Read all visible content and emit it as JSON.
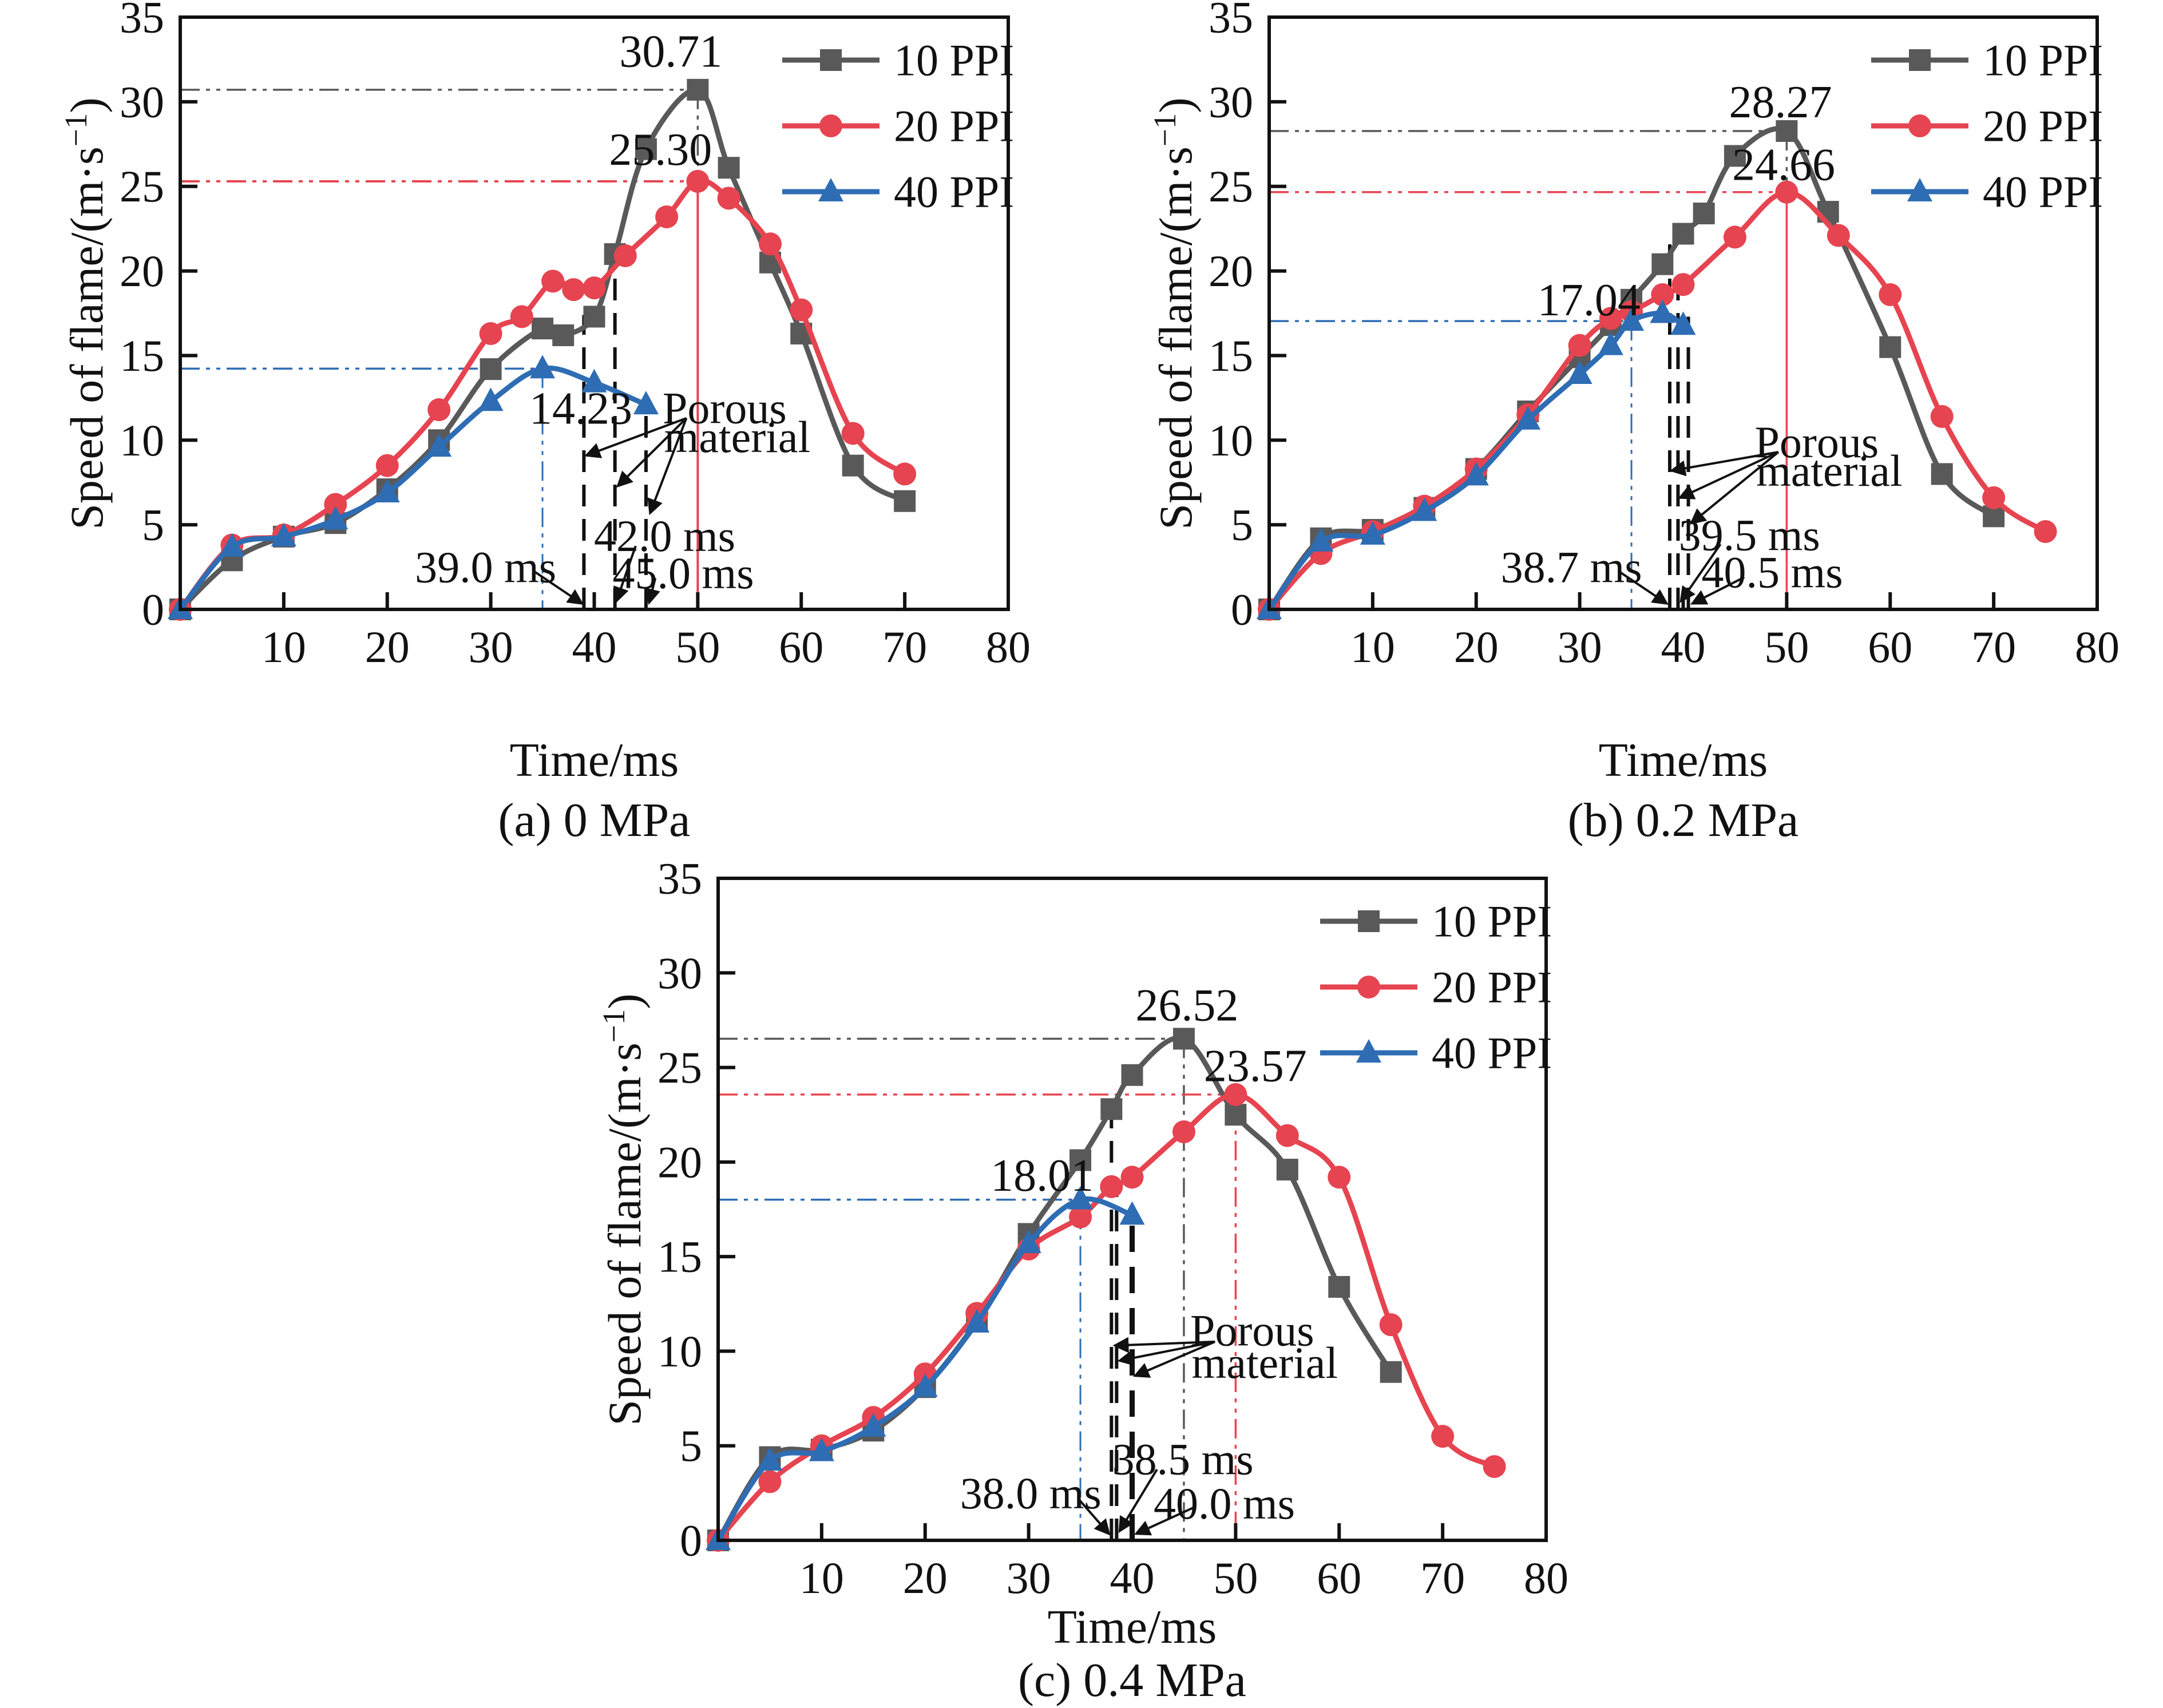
{
  "figure": {
    "colors": {
      "gray": "#595959",
      "red": "#e64450",
      "blue": "#2e6db4",
      "black": "#111111"
    },
    "axis": {
      "xlabel": "Time/ms",
      "ylabel_main": "Speed of flame/(m·s",
      "ylabel_sup": "−1",
      "ylabel_close": ")"
    }
  },
  "chart_data": [
    {
      "id": "a",
      "type": "line",
      "caption": "(a) 0 MPa",
      "xlabel": "Time/ms",
      "ylabel": "Speed of flame/(m·s⁻¹)",
      "xlim": [
        0,
        80
      ],
      "ylim": [
        0,
        35
      ],
      "xticks": [
        10,
        20,
        30,
        40,
        50,
        60,
        70,
        80
      ],
      "yticks": [
        0,
        5,
        10,
        15,
        20,
        25,
        30,
        35
      ],
      "legend_position": "top-right",
      "grid": false,
      "series": [
        {
          "name": "10 PPI",
          "color": "gray",
          "marker": "square",
          "x": [
            0,
            5,
            10,
            15,
            20,
            25,
            30,
            35,
            37,
            40,
            42,
            45,
            50,
            53,
            57,
            60,
            65,
            70
          ],
          "y": [
            0,
            2.9,
            4.3,
            5.1,
            7.1,
            10.0,
            14.2,
            16.6,
            16.2,
            17.3,
            21.0,
            27.2,
            30.71,
            26.1,
            20.5,
            16.3,
            8.5,
            6.4
          ]
        },
        {
          "name": "20 PPI",
          "color": "red",
          "marker": "circle",
          "x": [
            0,
            5,
            10,
            15,
            20,
            25,
            30,
            33,
            36,
            38,
            40,
            43,
            47,
            50,
            53,
            57,
            60,
            65,
            70
          ],
          "y": [
            0,
            3.8,
            4.4,
            6.2,
            8.5,
            11.8,
            16.3,
            17.3,
            19.4,
            18.9,
            19.0,
            20.9,
            23.2,
            25.3,
            24.3,
            21.6,
            17.7,
            10.4,
            8.0
          ]
        },
        {
          "name": "40 PPI",
          "color": "blue",
          "marker": "triangle",
          "x": [
            0,
            5,
            10,
            15,
            20,
            25,
            30,
            35,
            40,
            45
          ],
          "y": [
            0,
            3.7,
            4.3,
            5.3,
            6.9,
            9.6,
            12.3,
            14.23,
            13.4,
            12.1
          ]
        }
      ],
      "peak_labels": [
        {
          "text": "30.71",
          "x": 47.4,
          "y": 33.0
        },
        {
          "text": "25.30",
          "x": 46.4,
          "y": 27.2
        },
        {
          "text": "14.23",
          "x": 38.7,
          "y": 11.9
        }
      ],
      "time_labels": [
        {
          "text": "39.0 ms",
          "tx": 29.5,
          "ty": 2.5,
          "sx": 34.3,
          "sy": 2.2,
          "ax": 38.8,
          "ay": 0.35
        },
        {
          "text": "42.0 ms",
          "tx": 46.8,
          "ty": 4.35,
          "sx": 44.0,
          "sy": 3.75,
          "ax": 42.15,
          "ay": 0.5
        },
        {
          "text": "45.0 ms",
          "tx": 48.6,
          "ty": 2.15,
          "sx": 45.9,
          "sy": 1.85,
          "ax": 45.3,
          "ay": 0.4
        }
      ],
      "porous": {
        "lines": [
          "Porous",
          "material"
        ],
        "tx": 52.6,
        "ty": 11.9,
        "ty2": 10.2,
        "sx": 48.9,
        "sy": 11.3,
        "targets": [
          [
            39.25,
            9.1
          ],
          [
            42.3,
            7.3
          ],
          [
            45.4,
            5.7
          ]
        ]
      },
      "ref_lines": [
        {
          "t": "h",
          "y": 30.71,
          "x1": 0,
          "x2": 50,
          "color": "gray",
          "style": "dashdot",
          "w": 3.5
        },
        {
          "t": "v",
          "x": 50,
          "y1": 30.71,
          "y2": 25.3,
          "color": "gray",
          "style": "dashdot",
          "w": 3.5
        },
        {
          "t": "h",
          "y": 25.3,
          "x1": 0,
          "x2": 50,
          "color": "red",
          "style": "dashdot",
          "w": 4
        },
        {
          "t": "v",
          "x": 50,
          "y1": 25.3,
          "y2": 0,
          "color": "red",
          "style": "solid",
          "w": 4
        },
        {
          "t": "h",
          "y": 14.23,
          "x1": 0,
          "x2": 35,
          "color": "blue",
          "style": "dashdot",
          "w": 3.5
        },
        {
          "t": "v",
          "x": 35,
          "y1": 14.23,
          "y2": 0,
          "color": "blue",
          "style": "dashdot",
          "w": 3
        },
        {
          "t": "v",
          "x": 39,
          "y1": 0,
          "y2": 17.4,
          "color": "black",
          "style": "dashed",
          "w": 6
        },
        {
          "t": "v",
          "x": 42,
          "y1": 0,
          "y2": 21.0,
          "color": "black",
          "style": "dashed",
          "w": 6
        },
        {
          "t": "v",
          "x": 45,
          "y1": 0,
          "y2": 11.6,
          "color": "black",
          "style": "dashed",
          "w": 6
        }
      ]
    },
    {
      "id": "b",
      "type": "line",
      "caption": "(b) 0.2 MPa",
      "xlabel": "Time/ms",
      "ylabel": "Speed of flame/(m·s⁻¹)",
      "xlim": [
        0,
        80
      ],
      "ylim": [
        0,
        35
      ],
      "xticks": [
        10,
        20,
        30,
        40,
        50,
        60,
        70,
        80
      ],
      "yticks": [
        0,
        5,
        10,
        15,
        20,
        25,
        30,
        35
      ],
      "legend_position": "top-right",
      "grid": false,
      "series": [
        {
          "name": "10 PPI",
          "color": "gray",
          "marker": "square",
          "x": [
            0,
            5,
            10,
            15,
            20,
            25,
            30,
            33,
            35,
            38,
            40,
            42,
            45,
            50,
            54,
            60,
            65,
            70
          ],
          "y": [
            0,
            4.2,
            4.7,
            6.0,
            8.3,
            11.7,
            14.9,
            16.8,
            18.3,
            20.4,
            22.2,
            23.4,
            26.8,
            28.27,
            23.5,
            15.5,
            8.0,
            5.5
          ]
        },
        {
          "name": "20 PPI",
          "color": "red",
          "marker": "circle",
          "x": [
            0,
            5,
            10,
            15,
            20,
            25,
            30,
            33,
            35,
            38,
            40,
            45,
            50,
            55,
            60,
            65,
            70,
            75
          ],
          "y": [
            0,
            3.3,
            4.6,
            6.1,
            8.3,
            11.5,
            15.6,
            17.2,
            17.6,
            18.6,
            19.2,
            22.0,
            24.66,
            22.1,
            18.6,
            11.4,
            6.6,
            4.6
          ]
        },
        {
          "name": "40 PPI",
          "color": "blue",
          "marker": "triangle",
          "x": [
            0,
            5,
            10,
            15,
            20,
            25,
            30,
            33,
            35,
            38,
            40
          ],
          "y": [
            0,
            4.0,
            4.4,
            5.8,
            7.9,
            11.2,
            13.9,
            15.6,
            17.04,
            17.5,
            16.8
          ]
        }
      ],
      "peak_labels": [
        {
          "text": "28.27",
          "x": 49.4,
          "y": 30.0
        },
        {
          "text": "24.66",
          "x": 49.7,
          "y": 26.3
        },
        {
          "text": "17.04",
          "x": 30.9,
          "y": 18.3
        }
      ],
      "time_labels": [
        {
          "text": "38.7 ms",
          "tx": 29.2,
          "ty": 2.5,
          "sx": 33.9,
          "sy": 2.2,
          "ax": 38.4,
          "ay": 0.35
        },
        {
          "text": "39.5 ms",
          "tx": 46.4,
          "ty": 4.4,
          "sx": 43.6,
          "sy": 3.85,
          "ax": 39.8,
          "ay": 0.5
        },
        {
          "text": "40.5 ms",
          "tx": 48.6,
          "ty": 2.2,
          "sx": 45.9,
          "sy": 1.9,
          "ax": 40.9,
          "ay": 0.35
        }
      ],
      "porous": {
        "lines": [
          "Porous",
          "material"
        ],
        "tx": 52.9,
        "ty": 9.9,
        "ty2": 8.2,
        "sx": 49.2,
        "sy": 9.3,
        "targets": [
          [
            38.9,
            8.2
          ],
          [
            39.7,
            6.6
          ],
          [
            40.8,
            5.1
          ]
        ]
      },
      "ref_lines": [
        {
          "t": "h",
          "y": 28.27,
          "x1": 0,
          "x2": 50,
          "color": "gray",
          "style": "dashdot",
          "w": 3.5
        },
        {
          "t": "v",
          "x": 50,
          "y1": 28.27,
          "y2": 24.66,
          "color": "gray",
          "style": "dashdot",
          "w": 3.5
        },
        {
          "t": "h",
          "y": 24.66,
          "x1": 0,
          "x2": 50,
          "color": "red",
          "style": "dashdot",
          "w": 3.5
        },
        {
          "t": "v",
          "x": 50,
          "y1": 24.66,
          "y2": 0,
          "color": "red",
          "style": "solid",
          "w": 3.5
        },
        {
          "t": "h",
          "y": 17.04,
          "x1": 0,
          "x2": 35,
          "color": "blue",
          "style": "dashdot",
          "w": 3.5
        },
        {
          "t": "v",
          "x": 35,
          "y1": 17.04,
          "y2": 0,
          "color": "blue",
          "style": "dashdot",
          "w": 3
        },
        {
          "t": "v",
          "x": 38.7,
          "y1": 0,
          "y2": 21.8,
          "color": "black",
          "style": "dashed",
          "w": 6
        },
        {
          "t": "v",
          "x": 39.5,
          "y1": 0,
          "y2": 19.3,
          "color": "black",
          "style": "dashed",
          "w": 6
        },
        {
          "t": "v",
          "x": 40.5,
          "y1": 0,
          "y2": 17.3,
          "color": "black",
          "style": "dashed",
          "w": 6
        }
      ]
    },
    {
      "id": "c",
      "type": "line",
      "caption": "(c) 0.4 MPa",
      "xlabel": "Time/ms",
      "ylabel": "Speed of flame/(m·s⁻¹)",
      "xlim": [
        0,
        80
      ],
      "ylim": [
        0,
        35
      ],
      "xticks": [
        10,
        20,
        30,
        40,
        50,
        60,
        70,
        80
      ],
      "yticks": [
        0,
        5,
        10,
        15,
        20,
        25,
        30,
        35
      ],
      "legend_position": "top-right",
      "grid": false,
      "series": [
        {
          "name": "10 PPI",
          "color": "gray",
          "marker": "square",
          "x": [
            0,
            5,
            10,
            15,
            20,
            25,
            30,
            35,
            38,
            40,
            45,
            50,
            55,
            60,
            65
          ],
          "y": [
            0,
            4.4,
            4.8,
            5.8,
            8.1,
            11.6,
            16.2,
            20.1,
            22.8,
            24.6,
            26.52,
            22.5,
            19.6,
            13.4,
            8.9
          ]
        },
        {
          "name": "20 PPI",
          "color": "red",
          "marker": "circle",
          "x": [
            0,
            5,
            10,
            15,
            20,
            25,
            30,
            35,
            38,
            40,
            45,
            50,
            55,
            60,
            65,
            70,
            75
          ],
          "y": [
            0,
            3.1,
            5.0,
            6.5,
            8.8,
            12.0,
            15.4,
            17.1,
            18.7,
            19.2,
            21.6,
            23.57,
            21.4,
            19.2,
            11.4,
            5.5,
            3.9
          ]
        },
        {
          "name": "40 PPI",
          "color": "blue",
          "marker": "triangle",
          "x": [
            0,
            5,
            10,
            15,
            20,
            25,
            30,
            35,
            40
          ],
          "y": [
            0,
            4.2,
            4.7,
            6.0,
            8.1,
            11.5,
            15.7,
            18.01,
            17.2
          ]
        }
      ],
      "peak_labels": [
        {
          "text": "26.52",
          "x": 45.3,
          "y": 28.3
        },
        {
          "text": "23.57",
          "x": 51.9,
          "y": 25.1
        },
        {
          "text": "18.01",
          "x": 31.3,
          "y": 19.3
        }
      ],
      "time_labels": [
        {
          "text": "38.0 ms",
          "tx": 30.2,
          "ty": 2.5,
          "sx": 34.8,
          "sy": 2.2,
          "ax": 37.75,
          "ay": 0.35
        },
        {
          "text": "38.5 ms",
          "tx": 44.9,
          "ty": 4.3,
          "sx": 42.4,
          "sy": 3.75,
          "ax": 38.8,
          "ay": 0.5
        },
        {
          "text": "40.0 ms",
          "tx": 48.9,
          "ty": 1.95,
          "sx": 46.0,
          "sy": 1.75,
          "ax": 40.4,
          "ay": 0.35
        }
      ],
      "porous": {
        "lines": [
          "Porous",
          "material"
        ],
        "tx": 51.6,
        "ty": 11.1,
        "ty2": 9.4,
        "sx": 48.0,
        "sy": 10.5,
        "targets": [
          [
            38.35,
            10.3
          ],
          [
            38.8,
            9.5
          ],
          [
            40.3,
            8.7
          ]
        ]
      },
      "ref_lines": [
        {
          "t": "h",
          "y": 26.52,
          "x1": 0,
          "x2": 45,
          "color": "gray",
          "style": "dashdot",
          "w": 3.5
        },
        {
          "t": "v",
          "x": 45,
          "y1": 26.52,
          "y2": 0,
          "color": "gray",
          "style": "dashdot",
          "w": 3.5
        },
        {
          "t": "h",
          "y": 23.57,
          "x1": 0,
          "x2": 50,
          "color": "red",
          "style": "dashdot",
          "w": 3.5
        },
        {
          "t": "v",
          "x": 50,
          "y1": 23.57,
          "y2": 0,
          "color": "red",
          "style": "dashdot",
          "w": 3.5
        },
        {
          "t": "h",
          "y": 18.01,
          "x1": 0,
          "x2": 35,
          "color": "blue",
          "style": "dashdot",
          "w": 3.5
        },
        {
          "t": "v",
          "x": 35,
          "y1": 18.01,
          "y2": 0,
          "color": "blue",
          "style": "dashdot",
          "w": 3
        },
        {
          "t": "v",
          "x": 38,
          "y1": 0,
          "y2": 22.6,
          "color": "black",
          "style": "dashed",
          "w": 6
        },
        {
          "t": "v",
          "x": 38.5,
          "y1": 0,
          "y2": 18.6,
          "color": "black",
          "style": "dashed",
          "w": 6
        },
        {
          "t": "v",
          "x": 40,
          "y1": 0,
          "y2": 17.1,
          "color": "black",
          "style": "dashed",
          "w": 9
        }
      ]
    }
  ]
}
